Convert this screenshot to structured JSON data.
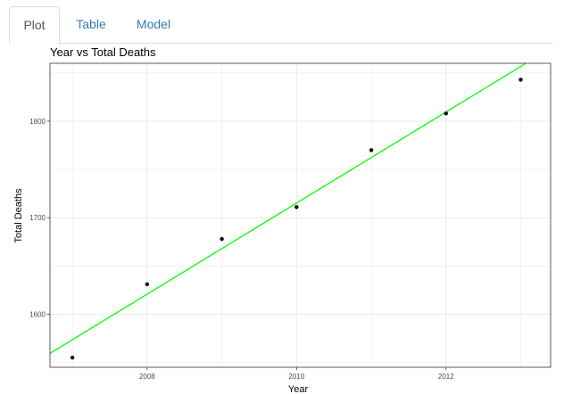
{
  "tabs": [
    {
      "label": "Plot",
      "active": true
    },
    {
      "label": "Table",
      "active": false
    },
    {
      "label": "Model",
      "active": false
    }
  ],
  "colors": {
    "fit_line": "#00ff00",
    "points": "#000000",
    "grid": "#ebebeb",
    "panel_border": "#333333"
  },
  "chart_data": {
    "type": "scatter",
    "title": "Year vs Total Deaths",
    "xlabel": "Year",
    "ylabel": "Total Deaths",
    "xlim": [
      2006.7,
      2013.4
    ],
    "ylim": [
      1545,
      1860
    ],
    "x_ticks": [
      2008,
      2010,
      2012
    ],
    "y_ticks": [
      1600,
      1700,
      1800
    ],
    "grid": true,
    "points": [
      {
        "x": 2007,
        "y": 1555
      },
      {
        "x": 2008,
        "y": 1631
      },
      {
        "x": 2009,
        "y": 1678
      },
      {
        "x": 2010,
        "y": 1711
      },
      {
        "x": 2011,
        "y": 1770
      },
      {
        "x": 2012,
        "y": 1808
      },
      {
        "x": 2013,
        "y": 1843
      }
    ],
    "fit_line": {
      "x_start": 2006.7,
      "y_start": 1559.4,
      "x_end": 2013.07,
      "y_end": 1860
    }
  }
}
